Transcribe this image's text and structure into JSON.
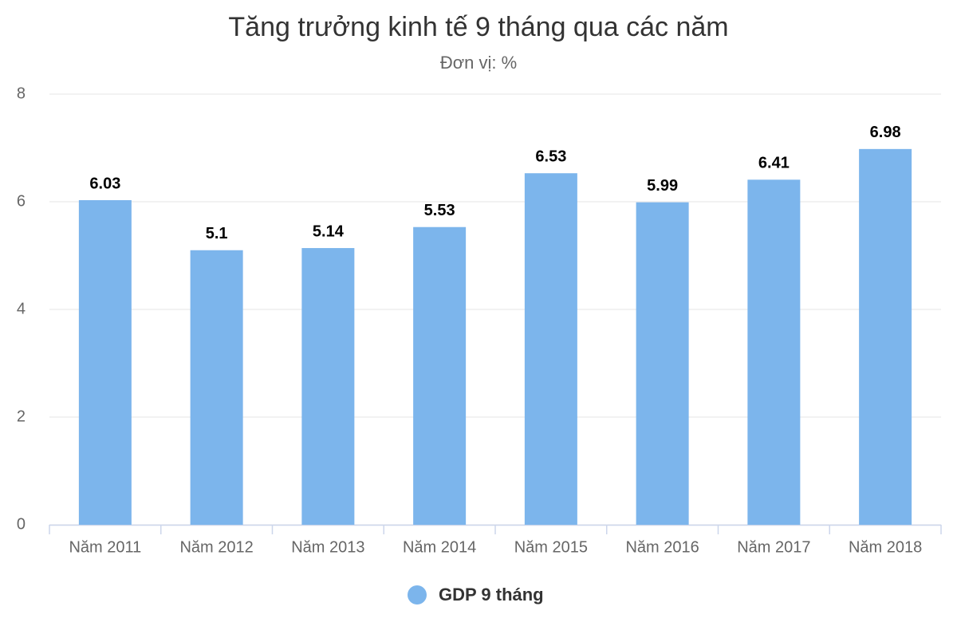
{
  "chart_data": {
    "type": "bar",
    "title": "Tăng trưởng kinh tế 9 tháng qua các năm",
    "subtitle": "Đơn vị: %",
    "categories": [
      "Năm 2011",
      "Năm 2012",
      "Năm 2013",
      "Năm 2014",
      "Năm 2015",
      "Năm 2016",
      "Năm 2017",
      "Năm 2018"
    ],
    "series": [
      {
        "name": "GDP 9 tháng",
        "color": "#7cb5ec",
        "values": [
          6.03,
          5.1,
          5.14,
          5.53,
          6.53,
          5.99,
          6.41,
          6.98
        ]
      }
    ],
    "ylim": [
      0,
      8
    ],
    "yticks": [
      0,
      2,
      4,
      6,
      8
    ],
    "grid": true,
    "legend": "bottom"
  }
}
